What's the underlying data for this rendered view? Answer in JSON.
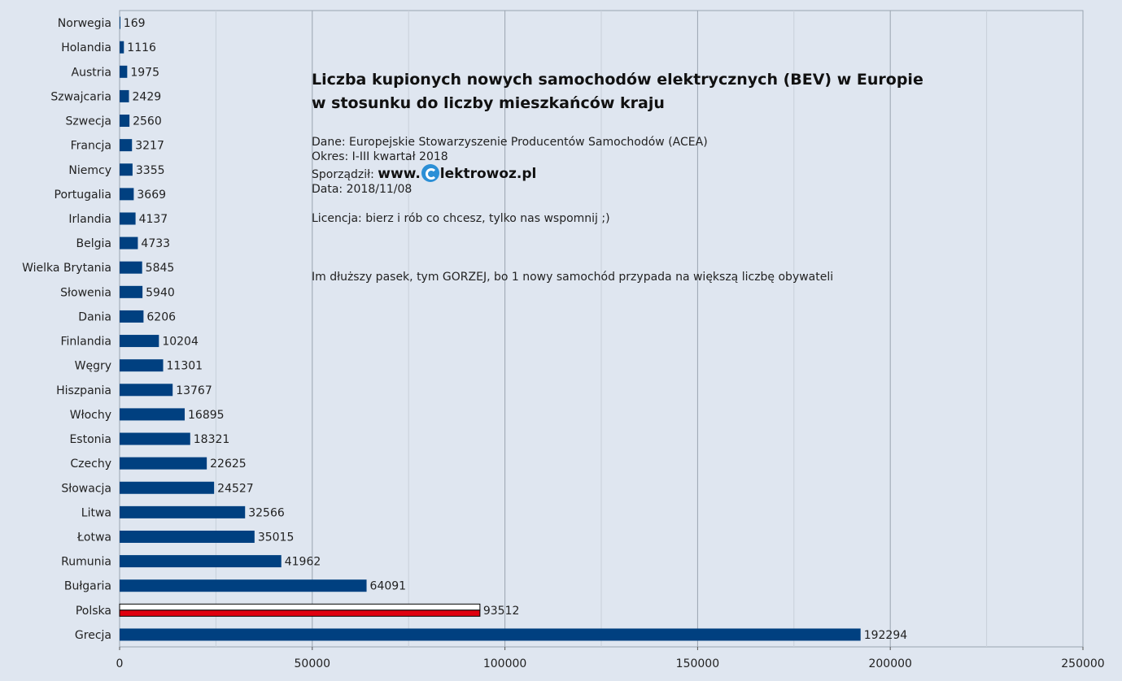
{
  "chart_data": {
    "type": "bar",
    "orientation": "horizontal",
    "categories": [
      "Norwegia",
      "Holandia",
      "Austria",
      "Szwajcaria",
      "Szwecja",
      "Francja",
      "Niemcy",
      "Portugalia",
      "Irlandia",
      "Belgia",
      "Wielka Brytania",
      "Słowenia",
      "Dania",
      "Finlandia",
      "Węgry",
      "Hiszpania",
      "Włochy",
      "Estonia",
      "Czechy",
      "Słowacja",
      "Litwa",
      "Łotwa",
      "Rumunia",
      "Bułgaria",
      "Polska",
      "Grecja"
    ],
    "values": [
      169,
      1116,
      1975,
      2429,
      2560,
      3217,
      3355,
      3669,
      4137,
      4733,
      5845,
      5940,
      6206,
      10204,
      11301,
      13767,
      16895,
      18321,
      22625,
      24527,
      32566,
      35015,
      41962,
      64091,
      93512,
      192294
    ],
    "xlim": [
      0,
      250000
    ],
    "xticks": [
      "0",
      "50000",
      "100000",
      "150000",
      "200000",
      "250000"
    ],
    "grid": true,
    "colors": {
      "bar": "#004080",
      "highlight_bottom": "#e0000f",
      "highlight_top": "#ffffff",
      "grid": "#9aa4b0"
    },
    "highlight": "Polska"
  },
  "title_lines": [
    "Liczba kupionych nowych samochodów elektrycznych (BEV) w Europie",
    "w stosunku do liczby mieszkańców kraju"
  ],
  "meta": {
    "source": "Dane: Europejskie Stowarzyszenie Producentów Samochodów (ACEA)",
    "period": "Okres: I-III kwartał 2018",
    "author_label": "Sporządził:",
    "brand_prefix": "www.",
    "brand_suffix": "lektrowoz.pl",
    "date": "Data: 2018/11/08",
    "license": "Licencja: bierz i rób co chcesz, tylko nas wspomnij ;)",
    "note": "Im dłuższy pasek, tym GORZEJ, bo 1 nowy samochód przypada na większą liczbę obywateli"
  }
}
